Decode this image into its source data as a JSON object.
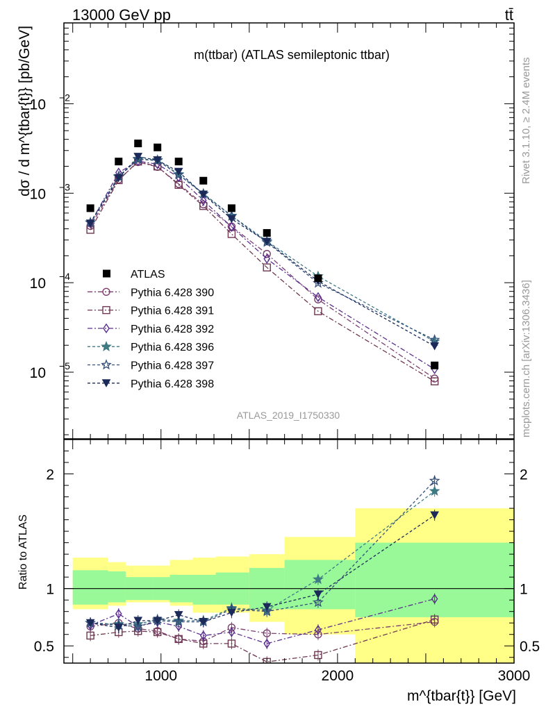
{
  "header": {
    "left": "13000 GeV pp",
    "right": "tt̄"
  },
  "side": {
    "rivet": "Rivet 3.1.10, ≥ 2.4M events",
    "mcplots": "mcplots.cern.ch [arXiv:1306.3436]"
  },
  "chart_data": [
    {
      "type": "scatter",
      "title": "m(ttbar) (ATLAS semileptonic ttbar)",
      "ylabel": "dσ / d m^{tbar{t}} [pb/GeV]",
      "xlabel": "m^{tbar{t}} [GeV]",
      "watermark": "ATLAS_2019_I1750330",
      "ylog": true,
      "xlim": [
        450,
        3000
      ],
      "ylim": [
        1.8e-06,
        0.08
      ],
      "yticks": [
        "10^-5",
        "10^-4",
        "10^-3",
        "10^-2"
      ],
      "x": [
        600,
        760,
        870,
        980,
        1100,
        1240,
        1400,
        1600,
        1890,
        2550
      ],
      "data": {
        "name": "ATLAS",
        "values": [
          0.00068,
          0.00226,
          0.0036,
          0.00325,
          0.00226,
          0.00138,
          0.00068,
          0.00036,
          0.000112,
          1.19e-05
        ]
      },
      "series": [
        {
          "name": "Pythia 6.428 390",
          "color": "#7a3f6e",
          "marker": "circle",
          "dash": "7,3,2,3",
          "values": [
            0.00043,
            0.00142,
            0.00223,
            0.00197,
            0.00127,
            0.00075,
            0.000425,
            0.00021,
            6.5e-05,
            8.5e-06
          ]
        },
        {
          "name": "Pythia 6.428 391",
          "color": "#6e3650",
          "marker": "square",
          "dash": "7,3,2,3",
          "values": [
            0.00039,
            0.0014,
            0.00226,
            0.00199,
            0.00124,
            0.00072,
            0.00035,
            0.000148,
            4.8e-05,
            7.9e-06
          ]
        },
        {
          "name": "Pythia 6.428 392",
          "color": "#5a2e8c",
          "marker": "diamond",
          "dash": "7,3,2,3",
          "values": [
            0.00046,
            0.0017,
            0.00228,
            0.00211,
            0.00151,
            0.00083,
            0.00042,
            0.000185,
            6.9e-05,
            1.08e-05
          ]
        },
        {
          "name": "Pythia 6.428 396",
          "color": "#3e7a84",
          "marker": "star",
          "dash": "4,3",
          "values": [
            0.00047,
            0.00155,
            0.00243,
            0.00235,
            0.00163,
            0.00099,
            0.00056,
            0.000292,
            0.000118,
            2.2e-05
          ]
        },
        {
          "name": "Pythia 6.428 397",
          "color": "#34507a",
          "marker": "star-open",
          "dash": "4,3",
          "values": [
            0.00047,
            0.00153,
            0.00239,
            0.00232,
            0.00161,
            0.00098,
            0.000555,
            0.000283,
            9.9e-05,
            2.3e-05
          ]
        },
        {
          "name": "Pythia 6.428 398",
          "color": "#1c2a5a",
          "marker": "triangle-down",
          "dash": "4,3",
          "values": [
            0.00046,
            0.00148,
            0.00256,
            0.00234,
            0.00174,
            0.00097,
            0.000515,
            0.000288,
            0.000104,
            1.95e-05
          ]
        }
      ]
    },
    {
      "type": "scatter",
      "ylabel": "Ratio to ATLAS",
      "xlim": [
        450,
        3000
      ],
      "ylim": [
        0.35,
        2.3
      ],
      "yticks": [
        0.5,
        1,
        2
      ],
      "xticks": [
        1000,
        2000,
        3000
      ],
      "x": [
        600,
        760,
        870,
        980,
        1100,
        1240,
        1400,
        1600,
        1890,
        2550
      ],
      "bins": [
        500,
        700,
        800,
        950,
        1050,
        1180,
        1310,
        1500,
        1700,
        2100,
        3000
      ],
      "band_stat": [
        [
          0.86,
          1.16
        ],
        [
          0.88,
          1.15
        ],
        [
          0.9,
          1.1
        ],
        [
          0.9,
          1.1
        ],
        [
          0.88,
          1.12
        ],
        [
          0.86,
          1.12
        ],
        [
          0.86,
          1.14
        ],
        [
          0.82,
          1.18
        ],
        [
          0.82,
          1.25
        ],
        [
          0.75,
          1.4
        ]
      ],
      "band_total": [
        [
          0.82,
          1.27
        ],
        [
          0.85,
          1.23
        ],
        [
          0.88,
          1.2
        ],
        [
          0.88,
          1.2
        ],
        [
          0.85,
          1.25
        ],
        [
          0.79,
          1.27
        ],
        [
          0.79,
          1.28
        ],
        [
          0.71,
          1.3
        ],
        [
          0.6,
          1.45
        ],
        [
          0.35,
          1.7
        ]
      ],
      "series": [
        {
          "name": "Pythia 6.428 390",
          "values": [
            0.67,
            0.7,
            0.65,
            0.63,
            0.56,
            0.54,
            0.66,
            0.61,
            0.6,
            0.71
          ]
        },
        {
          "name": "Pythia 6.428 391",
          "values": [
            0.59,
            0.62,
            0.63,
            0.62,
            0.56,
            0.52,
            0.52,
            0.36,
            0.42,
            0.73
          ]
        },
        {
          "name": "Pythia 6.428 392",
          "values": [
            0.68,
            0.78,
            0.67,
            0.71,
            0.67,
            0.59,
            0.62,
            0.52,
            0.64,
            0.91
          ]
        },
        {
          "name": "Pythia 6.428 396",
          "values": [
            0.7,
            0.69,
            0.69,
            0.73,
            0.72,
            0.72,
            0.83,
            0.81,
            1.08,
            1.85
          ]
        },
        {
          "name": "Pythia 6.428 397",
          "values": [
            0.7,
            0.68,
            0.67,
            0.72,
            0.71,
            0.71,
            0.82,
            0.8,
            0.88,
            1.94
          ]
        },
        {
          "name": "Pythia 6.428 398",
          "values": [
            0.7,
            0.66,
            0.72,
            0.72,
            0.77,
            0.71,
            0.79,
            0.84,
            0.95,
            1.64
          ]
        }
      ]
    }
  ]
}
